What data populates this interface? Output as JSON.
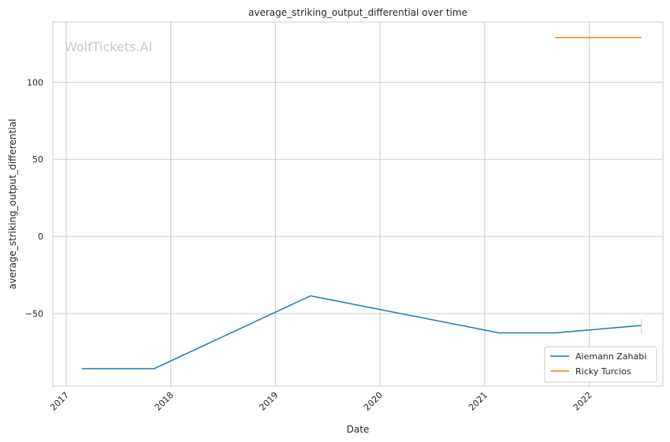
{
  "chart_data": {
    "type": "line",
    "title": "average_striking_output_differential over time",
    "xlabel": "Date",
    "ylabel": "average_striking_output_differential",
    "watermark": "WolfTickets.AI",
    "x_tick_labels": [
      "2017",
      "2018",
      "2019",
      "2020",
      "2021",
      "2022"
    ],
    "y_tick_labels": [
      "100",
      "50",
      "0",
      "−50"
    ],
    "y_ticks": [
      100,
      50,
      0,
      -50
    ],
    "ylim": [
      -97,
      139
    ],
    "xlim": [
      "2016-11-15",
      "2022-09-15"
    ],
    "grid": true,
    "legend_position": "lower-right",
    "series": [
      {
        "name": "Aiemann Zahabi",
        "color": "#1f77b4",
        "points": [
          {
            "x": "2017-02-25",
            "y": -85.7
          },
          {
            "x": "2017-11-04",
            "y": -85.7
          },
          {
            "x": "2019-05-04",
            "y": -38.5
          },
          {
            "x": "2021-02-20",
            "y": -62.5
          },
          {
            "x": "2021-09-04",
            "y": -62.5
          },
          {
            "x": "2022-07-02",
            "y": -57.7
          }
        ]
      },
      {
        "name": "Ricky Turcios",
        "color": "#ff7f0e",
        "points": [
          {
            "x": "2021-09-04",
            "y": 129.0
          },
          {
            "x": "2022-07-02",
            "y": 129.0
          }
        ]
      }
    ]
  }
}
